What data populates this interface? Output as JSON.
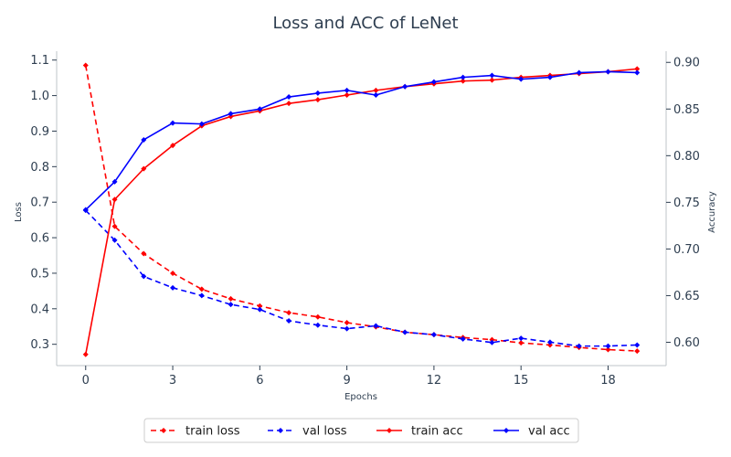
{
  "chart_data": {
    "type": "line",
    "title": "Loss and ACC of LeNet",
    "xlabel": "Epochs",
    "ylabel_left": "Loss",
    "ylabel_right": "Accuracy",
    "xlim": [
      -1,
      20
    ],
    "ylim_left": [
      0.24,
      1.125
    ],
    "ylim_right": [
      0.575,
      0.912
    ],
    "x_ticks": [
      0,
      3,
      6,
      9,
      12,
      15,
      18
    ],
    "left_ticks": [
      0.3,
      0.4,
      0.5,
      0.6,
      0.7,
      0.8,
      0.9,
      1.0,
      1.1
    ],
    "right_ticks": [
      0.6,
      0.65,
      0.7,
      0.75,
      0.8,
      0.85,
      0.9
    ],
    "x": [
      0,
      1,
      2,
      3,
      4,
      5,
      6,
      7,
      8,
      9,
      10,
      11,
      12,
      13,
      14,
      15,
      16,
      17,
      18,
      19
    ],
    "series": [
      {
        "name": "train loss",
        "axis": "left",
        "color": "#ff0000",
        "dash": true,
        "values": [
          1.085,
          0.632,
          0.555,
          0.5,
          0.455,
          0.428,
          0.408,
          0.389,
          0.377,
          0.361,
          0.349,
          0.334,
          0.327,
          0.319,
          0.313,
          0.304,
          0.298,
          0.291,
          0.285,
          0.281
        ]
      },
      {
        "name": "val loss",
        "axis": "left",
        "color": "#0000ff",
        "dash": true,
        "values": [
          0.677,
          0.593,
          0.491,
          0.459,
          0.437,
          0.412,
          0.398,
          0.366,
          0.354,
          0.344,
          0.352,
          0.334,
          0.327,
          0.315,
          0.305,
          0.317,
          0.306,
          0.295,
          0.295,
          0.298
        ]
      },
      {
        "name": "train acc",
        "axis": "right",
        "color": "#ff0000",
        "dash": false,
        "values": [
          0.587,
          0.753,
          0.786,
          0.811,
          0.832,
          0.842,
          0.848,
          0.856,
          0.86,
          0.865,
          0.87,
          0.874,
          0.877,
          0.88,
          0.881,
          0.884,
          0.886,
          0.888,
          0.89,
          0.893
        ]
      },
      {
        "name": "val acc",
        "axis": "right",
        "color": "#0000ff",
        "dash": false,
        "values": [
          0.742,
          0.772,
          0.817,
          0.835,
          0.834,
          0.845,
          0.85,
          0.863,
          0.867,
          0.87,
          0.865,
          0.874,
          0.879,
          0.884,
          0.886,
          0.882,
          0.884,
          0.889,
          0.89,
          0.889
        ]
      }
    ],
    "grid": false,
    "legend_position": "bottom-center"
  }
}
